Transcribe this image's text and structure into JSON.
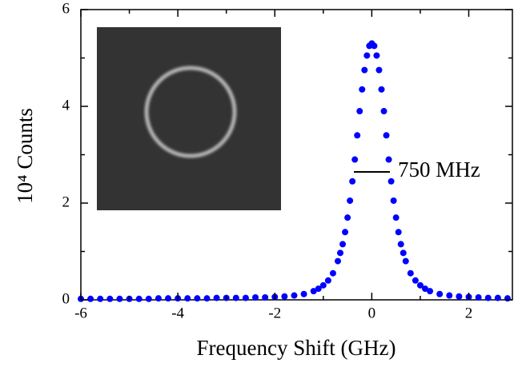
{
  "chart_data": {
    "type": "scatter",
    "xlabel": "Frequency Shift (GHz)",
    "ylabel": "10⁴ Counts",
    "annotation": "750 MHz",
    "color": "#0000ff",
    "xlim": [
      -6,
      2.9
    ],
    "xticks": [
      -6,
      -4,
      -2,
      0,
      2
    ],
    "ylim": [
      0,
      6
    ],
    "yticks": [
      0,
      2,
      4,
      6
    ],
    "x": [
      -6,
      -5.8,
      -5.6,
      -5.4,
      -5.2,
      -5,
      -4.8,
      -4.6,
      -4.4,
      -4.2,
      -4,
      -3.8,
      -3.6,
      -3.4,
      -3.2,
      -3,
      -2.8,
      -2.6,
      -2.4,
      -2.2,
      -2,
      -1.8,
      -1.6,
      -1.4,
      -1.2,
      -1.1,
      -1,
      -0.9,
      -0.8,
      -0.7,
      -0.65,
      -0.6,
      -0.55,
      -0.5,
      -0.45,
      -0.4,
      -0.35,
      -0.3,
      -0.25,
      -0.2,
      -0.15,
      -0.1,
      -0.05,
      0,
      0.05,
      0.1,
      0.15,
      0.2,
      0.25,
      0.3,
      0.35,
      0.4,
      0.45,
      0.5,
      0.55,
      0.6,
      0.65,
      0.7,
      0.8,
      0.9,
      1,
      1.1,
      1.2,
      1.4,
      1.6,
      1.8,
      2,
      2.2,
      2.4,
      2.6,
      2.8
    ],
    "values": [
      0.02,
      0.02,
      0.02,
      0.02,
      0.02,
      0.02,
      0.02,
      0.02,
      0.03,
      0.03,
      0.03,
      0.03,
      0.03,
      0.03,
      0.04,
      0.04,
      0.04,
      0.04,
      0.05,
      0.05,
      0.06,
      0.07,
      0.09,
      0.12,
      0.18,
      0.23,
      0.3,
      0.4,
      0.55,
      0.8,
      0.97,
      1.15,
      1.4,
      1.7,
      2.05,
      2.45,
      2.9,
      3.4,
      3.9,
      4.35,
      4.75,
      5.05,
      5.25,
      5.3,
      5.25,
      5.05,
      4.75,
      4.35,
      3.9,
      3.4,
      2.9,
      2.45,
      2.05,
      1.7,
      1.4,
      1.15,
      0.97,
      0.8,
      0.55,
      0.4,
      0.3,
      0.23,
      0.18,
      0.12,
      0.09,
      0.07,
      0.06,
      0.05,
      0.04,
      0.04,
      0.03
    ]
  }
}
